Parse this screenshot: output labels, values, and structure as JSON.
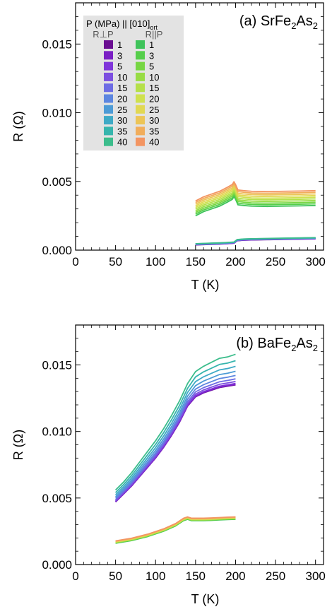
{
  "chart_data": [
    {
      "type": "line",
      "title_parts": [
        "(a) SrFe",
        "2",
        "As",
        "2"
      ],
      "xlabel": "T (K)",
      "ylabel": "R (Ω)",
      "xlim": [
        0,
        310
      ],
      "ylim": [
        0,
        0.018
      ],
      "xticks": [
        0,
        50,
        100,
        150,
        200,
        250,
        300
      ],
      "yticks": [
        0.0,
        0.005,
        0.01,
        0.015
      ],
      "ytick_labels": [
        "0.000",
        "0.005",
        "0.010",
        "0.015"
      ],
      "legend": {
        "title_parts": [
          "P (MPa) || [010]",
          "ort"
        ],
        "col_headers": [
          "R⊥P",
          "R||P"
        ],
        "pressures": [
          "1",
          "3",
          "5",
          "10",
          "15",
          "20",
          "25",
          "30",
          "35",
          "40"
        ],
        "colors_perp": [
          "#6a0d91",
          "#7a1fc4",
          "#7f35da",
          "#7c4fe0",
          "#6d6ce4",
          "#5c86e0",
          "#4d9bd6",
          "#3eaac6",
          "#36b5ad",
          "#3cbd8c"
        ],
        "colors_par": [
          "#3ec35a",
          "#55ce4a",
          "#77d643",
          "#98dc45",
          "#b5e04a",
          "#cfe14f",
          "#e1d853",
          "#ecc557",
          "#f1ad5b",
          "#f39562"
        ]
      },
      "series_perp": {
        "x": [
          150,
          160,
          170,
          180,
          190,
          198,
          202,
          210,
          220,
          240,
          260,
          280,
          300
        ],
        "base": [
          0.00038,
          0.0004,
          0.00042,
          0.00044,
          0.00047,
          0.0005,
          0.00068,
          0.00072,
          0.00074,
          0.00076,
          0.00078,
          0.0008,
          0.00082
        ],
        "offset_step": 1e-05
      },
      "series_par": {
        "x": [
          150,
          160,
          170,
          180,
          190,
          196,
          198,
          200,
          203,
          210,
          220,
          240,
          260,
          280,
          300
        ],
        "base": [
          0.0025,
          0.0028,
          0.003,
          0.0032,
          0.0035,
          0.0037,
          0.0039,
          0.0037,
          0.0033,
          0.00325,
          0.0032,
          0.00318,
          0.0032,
          0.00322,
          0.00325
        ],
        "offset_step": 0.00012
      }
    },
    {
      "type": "line",
      "title_parts": [
        "(b) BaFe",
        "2",
        "As",
        "2"
      ],
      "xlabel": "T (K)",
      "ylabel": "R (Ω)",
      "xlim": [
        0,
        310
      ],
      "ylim": [
        0,
        0.018
      ],
      "xticks": [
        0,
        50,
        100,
        150,
        200,
        250,
        300
      ],
      "yticks": [
        0.0,
        0.005,
        0.01,
        0.015
      ],
      "ytick_labels": [
        "0.000",
        "0.005",
        "0.010",
        "0.015"
      ],
      "series_perp": {
        "x": [
          50,
          60,
          70,
          80,
          90,
          100,
          110,
          120,
          130,
          140,
          150,
          160,
          170,
          180,
          190,
          200
        ],
        "base": [
          0.0047,
          0.0053,
          0.0059,
          0.0066,
          0.0073,
          0.008,
          0.0088,
          0.0097,
          0.0107,
          0.0119,
          0.0126,
          0.0129,
          0.0131,
          0.0133,
          0.0134,
          0.0135
        ],
        "extra_top": [
          0.0009,
          0.0009,
          0.001,
          0.0011,
          0.0012,
          0.0013,
          0.0014,
          0.0015,
          0.0016,
          0.0017,
          0.0019,
          0.002,
          0.0021,
          0.0022,
          0.0022,
          0.0023
        ]
      },
      "series_par": {
        "x": [
          50,
          70,
          90,
          110,
          125,
          135,
          140,
          145,
          150,
          160,
          170,
          180,
          190,
          200
        ],
        "base": [
          0.0016,
          0.0018,
          0.0021,
          0.0025,
          0.0029,
          0.0033,
          0.0034,
          0.0033,
          0.0033,
          0.0033,
          0.00332,
          0.00335,
          0.00338,
          0.0034
        ],
        "offset_step": 2e-05
      }
    }
  ]
}
